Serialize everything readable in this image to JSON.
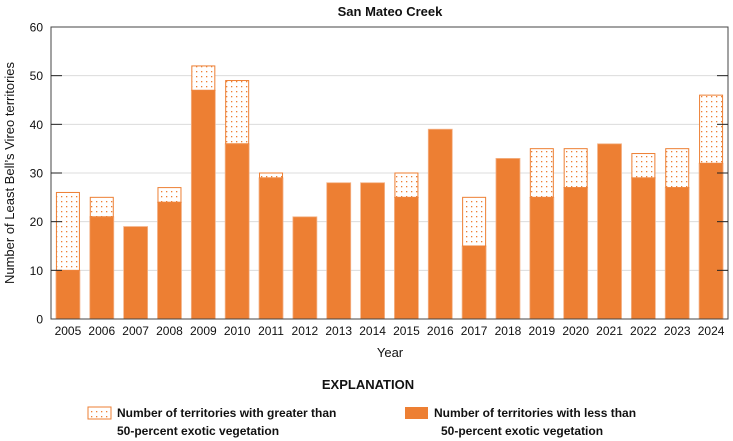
{
  "chart_data": {
    "type": "bar",
    "stacked": true,
    "title": "San Mateo Creek",
    "xlabel": "Year",
    "ylabel": "Number of Least Bell’s Vireo territories",
    "ylim": [
      0,
      60
    ],
    "yticks": [
      0,
      10,
      20,
      30,
      40,
      50,
      60
    ],
    "grid": true,
    "categories": [
      "2005",
      "2006",
      "2007",
      "2008",
      "2009",
      "2010",
      "2011",
      "2012",
      "2013",
      "2014",
      "2015",
      "2016",
      "2017",
      "2018",
      "2019",
      "2020",
      "2021",
      "2022",
      "2023",
      "2024"
    ],
    "series": [
      {
        "name": "Number of territories with less than 50-percent exotic vegetation",
        "color": "#ed7f33",
        "fill": "solid",
        "values": [
          10,
          21,
          19,
          24,
          47,
          36,
          29,
          21,
          28,
          28,
          25,
          39,
          15,
          33,
          25,
          27,
          36,
          29,
          27,
          32
        ]
      },
      {
        "name": "Number of territories with greater than 50-percent exotic vegetation",
        "color": "#ed7f33",
        "fill": "stipple",
        "values": [
          16,
          4,
          0,
          3,
          5,
          13,
          1,
          0,
          0,
          0,
          5,
          0,
          10,
          0,
          10,
          8,
          0,
          5,
          8,
          14
        ]
      }
    ],
    "legend": {
      "title": "EXPLANATION",
      "placement": "bottom",
      "items": [
        {
          "line1": "Number of territories with greater than",
          "line2": "50-percent exotic vegetation",
          "fill": "stipple"
        },
        {
          "line1": "Number of territories with less than",
          "line2": "50-percent exotic vegetation",
          "fill": "solid"
        }
      ]
    }
  }
}
